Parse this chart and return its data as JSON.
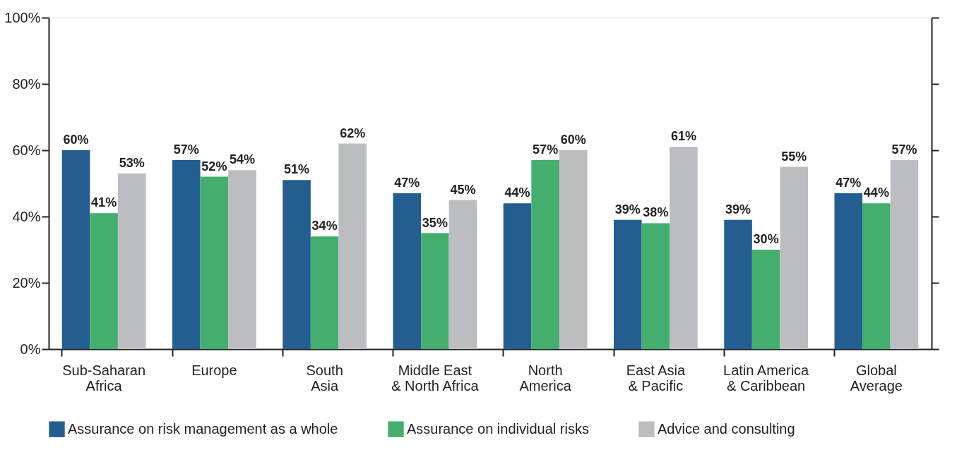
{
  "chart_data": {
    "type": "bar",
    "categories": [
      "Sub-Saharan\nAfrica",
      "Europe",
      "South\nAsia",
      "Middle East\n& North Africa",
      "North\nAmerica",
      "East Asia\n& Pacific",
      "Latin America\n& Caribbean",
      "Global\nAverage"
    ],
    "series": [
      {
        "name": "Assurance on risk management as a whole",
        "color": "#245e91",
        "values": [
          60,
          57,
          51,
          47,
          44,
          39,
          39,
          47
        ],
        "value_labels": [
          "60%",
          "57%",
          "51%",
          "47%",
          "44%",
          "39%",
          "39%",
          "47%"
        ]
      },
      {
        "name": "Assurance on individual risks",
        "color": "#43ae6e",
        "values": [
          41,
          52,
          34,
          35,
          57,
          38,
          30,
          44
        ],
        "value_labels": [
          "41%",
          "52%",
          "34%",
          "35%",
          "57%",
          "38%",
          "30%",
          "44%"
        ]
      },
      {
        "name": "Advice and consulting",
        "color": "#bcbdc1",
        "values": [
          53,
          54,
          62,
          45,
          60,
          61,
          55,
          57
        ],
        "value_labels": [
          "53%",
          "54%",
          "62%",
          "45%",
          "60%",
          "61%",
          "55%",
          "57%"
        ]
      }
    ],
    "ylim": [
      0,
      100
    ],
    "yticks": [
      {
        "value": 0,
        "label": "0%"
      },
      {
        "value": 20,
        "label": "20%"
      },
      {
        "value": 40,
        "label": "40%"
      },
      {
        "value": 60,
        "label": "60%"
      },
      {
        "value": 80,
        "label": "80%"
      },
      {
        "value": 100,
        "label": "100%"
      }
    ],
    "legend": "bottom"
  }
}
